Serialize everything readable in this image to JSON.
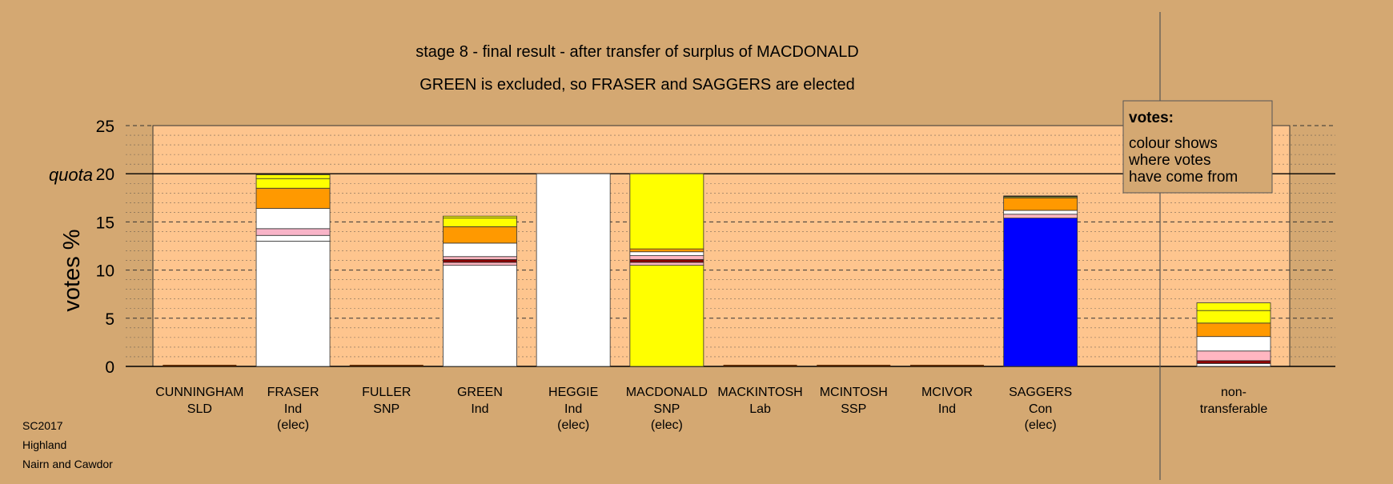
{
  "chart_data": {
    "type": "bar",
    "stacked": true,
    "title_line1": "stage 8 - final result - after transfer of surplus of MACDONALD",
    "title_line2": "GREEN is excluded, so FRASER and SAGGERS are elected",
    "ylabel": "votes %",
    "ylim": [
      0,
      25
    ],
    "yticks": [
      "0",
      "5",
      "10",
      "15",
      "20",
      "25"
    ],
    "quota": 20,
    "quota_label": "quota",
    "grid": true,
    "legend": {
      "title": "votes:",
      "lines": [
        "colour shows",
        "where votes",
        "have come from"
      ],
      "position": "top-right"
    },
    "candidates": [
      {
        "name": "CUNNINGHAM",
        "party": "SLD",
        "status": "",
        "segments": []
      },
      {
        "name": "FRASER",
        "party": "Ind",
        "status": "(elec)",
        "segments": [
          {
            "value": 13.0,
            "color": "#ffffff"
          },
          {
            "value": 0.6,
            "color": "#ffffff"
          },
          {
            "value": 0.7,
            "color": "#f8b4c8"
          },
          {
            "value": 2.1,
            "color": "#ffffff"
          },
          {
            "value": 2.1,
            "color": "#ff9900"
          },
          {
            "value": 1.0,
            "color": "#ffff00"
          },
          {
            "value": 0.4,
            "color": "#ffff00"
          }
        ]
      },
      {
        "name": "FULLER",
        "party": "SNP",
        "status": "",
        "segments": []
      },
      {
        "name": "GREEN",
        "party": "Ind",
        "status": "",
        "segments": [
          {
            "value": 10.5,
            "color": "#ffffff"
          },
          {
            "value": 0.3,
            "color": "#ffb6c1"
          },
          {
            "value": 0.3,
            "color": "#8b0000"
          },
          {
            "value": 0.3,
            "color": "#ffb6c1"
          },
          {
            "value": 1.4,
            "color": "#ffffff"
          },
          {
            "value": 1.7,
            "color": "#ff9900"
          },
          {
            "value": 0.9,
            "color": "#ffff00"
          },
          {
            "value": 0.2,
            "color": "#ffff00"
          }
        ]
      },
      {
        "name": "HEGGIE",
        "party": "Ind",
        "status": "(elec)",
        "segments": [
          {
            "value": 20.0,
            "color": "#ffffff"
          }
        ]
      },
      {
        "name": "MACDONALD",
        "party": "SNP",
        "status": "(elec)",
        "segments": [
          {
            "value": 10.5,
            "color": "#ffff00"
          },
          {
            "value": 0.3,
            "color": "#ffb6c1"
          },
          {
            "value": 0.3,
            "color": "#8b0000"
          },
          {
            "value": 0.4,
            "color": "#ffb6c1"
          },
          {
            "value": 0.4,
            "color": "#ffffff"
          },
          {
            "value": 0.3,
            "color": "#ff9900"
          },
          {
            "value": 7.8,
            "color": "#ffff00"
          }
        ]
      },
      {
        "name": "MACKINTOSH",
        "party": "Lab",
        "status": "",
        "segments": []
      },
      {
        "name": "MCINTOSH",
        "party": "SSP",
        "status": "",
        "segments": []
      },
      {
        "name": "MCIVOR",
        "party": "Ind",
        "status": "",
        "segments": []
      },
      {
        "name": "SAGGERS",
        "party": "Con",
        "status": "(elec)",
        "segments": [
          {
            "value": 15.4,
            "color": "#0000ff"
          },
          {
            "value": 0.4,
            "color": "#ffb6c1"
          },
          {
            "value": 0.4,
            "color": "#ffffff"
          },
          {
            "value": 1.3,
            "color": "#ff9900"
          },
          {
            "value": 0.1,
            "color": "#ffff00"
          },
          {
            "value": 0.1,
            "color": "#000000"
          }
        ]
      }
    ],
    "nontransferable": {
      "label_line1": "non-",
      "label_line2": "transferable",
      "segments": [
        {
          "value": 0.3,
          "color": "#ffffff"
        },
        {
          "value": 0.3,
          "color": "#8b0000"
        },
        {
          "value": 1.0,
          "color": "#ffb6c1"
        },
        {
          "value": 1.5,
          "color": "#ffffff"
        },
        {
          "value": 1.4,
          "color": "#ff9900"
        },
        {
          "value": 1.3,
          "color": "#ffff00"
        },
        {
          "value": 0.8,
          "color": "#ffff00"
        }
      ]
    },
    "footer": [
      "SC2017",
      "Highland",
      "Nairn and Cawdor"
    ]
  }
}
